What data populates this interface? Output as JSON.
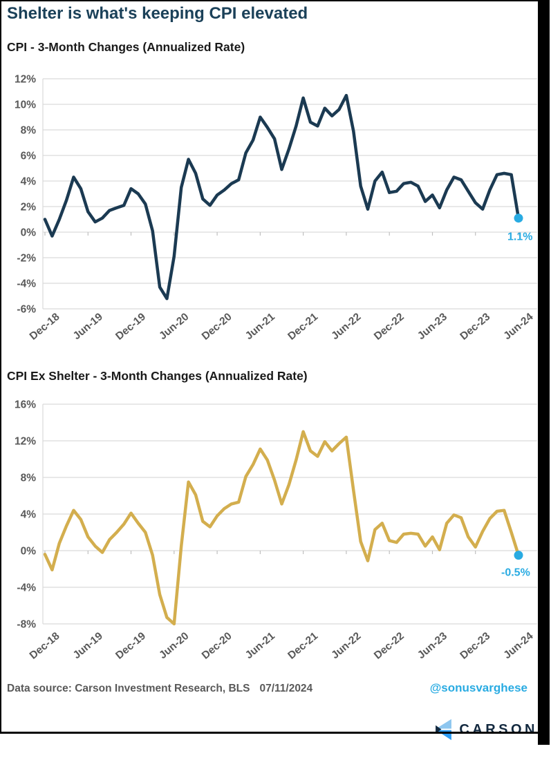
{
  "page": {
    "title": "Shelter is what's keeping CPI elevated"
  },
  "colors": {
    "navy_line": "#1b3a52",
    "gold_line": "#d3ae4e",
    "accent_blue": "#29abe2",
    "axis_text": "#595959",
    "gridline": "#d9d9d9",
    "tick": "#bfbfbf",
    "logo_navy": "#13293f",
    "logo_light_blue": "#8dc6ef",
    "logo_blue": "#2e9df4"
  },
  "footer": {
    "data_source": "Data source: Carson Investment Research, BLS",
    "date": "07/11/2024",
    "handle": "@sonusvarghese",
    "logo_text": "CARSON"
  },
  "chart_data": [
    {
      "type": "line",
      "title": "CPI - 3-Month Changes (Annualized Rate)",
      "frequency": "monthly",
      "x_start": "Dec-18",
      "x_end": "Jun-24",
      "x_tick_labels": [
        "Dec-18",
        "Jun-19",
        "Dec-19",
        "Jun-20",
        "Dec-20",
        "Jun-21",
        "Dec-21",
        "Jun-22",
        "Dec-22",
        "Jun-23",
        "Dec-23",
        "Jun-24"
      ],
      "y_tick_labels": [
        "12%",
        "10%",
        "8%",
        "6%",
        "4%",
        "2%",
        "0%",
        "-2%",
        "-4%",
        "-6%"
      ],
      "y_tick_values": [
        12,
        10,
        8,
        6,
        4,
        2,
        0,
        -2,
        -4,
        -6
      ],
      "ylim": [
        -6,
        12
      ],
      "grid": true,
      "legend": "none",
      "line_color_key": "navy_line",
      "values": [
        1.0,
        -0.3,
        1.0,
        2.5,
        4.3,
        3.4,
        1.6,
        0.8,
        1.1,
        1.7,
        1.9,
        2.1,
        3.4,
        3.0,
        2.2,
        0.1,
        -4.3,
        -5.2,
        -1.9,
        3.5,
        5.7,
        4.6,
        2.6,
        2.1,
        2.9,
        3.3,
        3.8,
        4.1,
        6.2,
        7.2,
        9.0,
        8.2,
        7.3,
        4.9,
        6.5,
        8.3,
        10.5,
        8.6,
        8.3,
        9.7,
        9.1,
        9.6,
        10.7,
        7.9,
        3.6,
        1.8,
        4.0,
        4.7,
        3.1,
        3.2,
        3.8,
        3.9,
        3.6,
        2.4,
        2.9,
        1.9,
        3.3,
        4.3,
        4.1,
        3.2,
        2.3,
        1.8,
        3.3,
        4.5,
        4.6,
        4.5,
        1.1
      ],
      "end_value": 1.1,
      "end_label": "1.1%"
    },
    {
      "type": "line",
      "title": "CPI Ex Shelter - 3-Month Changes (Annualized Rate)",
      "frequency": "monthly",
      "x_start": "Dec-18",
      "x_end": "Jun-24",
      "x_tick_labels": [
        "Dec-18",
        "Jun-19",
        "Dec-19",
        "Jun-20",
        "Dec-20",
        "Jun-21",
        "Dec-21",
        "Jun-22",
        "Dec-22",
        "Jun-23",
        "Dec-23",
        "Jun-24"
      ],
      "y_tick_labels": [
        "16%",
        "12%",
        "8%",
        "4%",
        "0%",
        "-4%",
        "-8%"
      ],
      "y_tick_values": [
        16,
        12,
        8,
        4,
        0,
        -4,
        -8
      ],
      "ylim": [
        -8,
        16
      ],
      "grid": true,
      "legend": "none",
      "line_color_key": "gold_line",
      "values": [
        -0.4,
        -2.1,
        0.8,
        2.7,
        4.4,
        3.4,
        1.5,
        0.5,
        -0.2,
        1.2,
        2.0,
        2.9,
        4.1,
        3.0,
        2.0,
        -0.5,
        -4.8,
        -7.3,
        -8.0,
        0.5,
        7.5,
        6.1,
        3.2,
        2.6,
        3.8,
        4.6,
        5.1,
        5.3,
        8.1,
        9.4,
        11.1,
        9.9,
        7.7,
        5.1,
        7.2,
        9.9,
        13.0,
        10.9,
        10.3,
        11.9,
        10.9,
        11.7,
        12.4,
        6.6,
        1.0,
        -1.1,
        2.3,
        3.0,
        1.1,
        0.9,
        1.8,
        1.9,
        1.8,
        0.5,
        1.5,
        0.1,
        3.0,
        3.9,
        3.6,
        1.5,
        0.4,
        2.1,
        3.5,
        4.3,
        4.4,
        2.0,
        -0.5
      ],
      "end_value": -0.5,
      "end_label": "-0.5%"
    }
  ]
}
